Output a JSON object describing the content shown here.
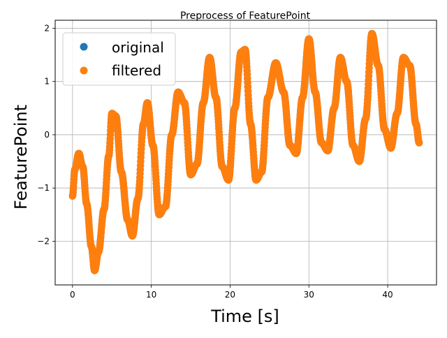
{
  "chart_data": {
    "type": "scatter",
    "title": "Preprocess of FeaturePoint",
    "xlabel": "Time [s]",
    "ylabel": "FeaturePoint",
    "xlim": [
      -2.2,
      46.2
    ],
    "ylim": [
      -2.82,
      2.15
    ],
    "xticks": [
      0,
      10,
      20,
      30,
      40
    ],
    "yticks": [
      -2,
      -1,
      0,
      1,
      2
    ],
    "xtick_labels": [
      "0",
      "10",
      "20",
      "30",
      "40"
    ],
    "ytick_labels": [
      "−2",
      "−1",
      "0",
      "1",
      "2"
    ],
    "grid": true,
    "legend": {
      "position": "top-left",
      "entries": [
        {
          "label": "original",
          "color": "#1f77b4"
        },
        {
          "label": "filtered",
          "color": "#ff7f0e"
        }
      ]
    },
    "series": [
      {
        "name": "original",
        "color": "#1f77b4",
        "x": [
          0.0,
          0.3,
          0.8,
          1.3,
          1.8,
          2.4,
          2.8,
          3.3,
          4.0,
          4.6,
          5.0,
          5.5,
          6.2,
          7.0,
          7.6,
          8.3,
          9.0,
          9.5,
          10.2,
          11.0,
          11.8,
          12.6,
          13.4,
          14.2,
          15.0,
          15.8,
          16.6,
          17.4,
          18.2,
          19.0,
          19.8,
          20.6,
          21.4,
          21.9,
          22.6,
          23.3,
          24.0,
          24.8,
          25.8,
          26.8,
          27.6,
          28.4,
          29.2,
          30.0,
          30.8,
          31.6,
          32.4,
          33.2,
          34.0,
          34.8,
          35.6,
          36.4,
          37.2,
          38.0,
          38.8,
          39.6,
          40.4,
          41.2,
          42.0,
          42.8,
          43.6,
          44.0
        ],
        "y": [
          -1.15,
          -0.65,
          -0.35,
          -0.6,
          -1.3,
          -2.1,
          -2.55,
          -2.2,
          -1.4,
          -0.4,
          0.4,
          0.35,
          -0.7,
          -1.6,
          -1.9,
          -1.2,
          0.2,
          0.6,
          -0.2,
          -1.5,
          -1.35,
          0.0,
          0.8,
          0.6,
          -0.75,
          -0.55,
          0.6,
          1.45,
          0.7,
          -0.6,
          -0.85,
          0.5,
          1.55,
          1.6,
          0.2,
          -0.85,
          -0.7,
          0.7,
          1.35,
          0.8,
          -0.2,
          -0.35,
          0.7,
          1.8,
          0.8,
          -0.15,
          -0.3,
          0.5,
          1.45,
          1.0,
          -0.2,
          -0.5,
          0.3,
          1.9,
          1.3,
          0.1,
          -0.25,
          0.4,
          1.45,
          1.3,
          0.2,
          -0.15
        ]
      },
      {
        "name": "filtered",
        "color": "#ff7f0e",
        "x": [
          0.0,
          0.3,
          0.8,
          1.3,
          1.8,
          2.4,
          2.8,
          3.3,
          4.0,
          4.6,
          5.0,
          5.5,
          6.2,
          7.0,
          7.6,
          8.3,
          9.0,
          9.5,
          10.2,
          11.0,
          11.8,
          12.6,
          13.4,
          14.2,
          15.0,
          15.8,
          16.6,
          17.4,
          18.2,
          19.0,
          19.8,
          20.6,
          21.4,
          21.9,
          22.6,
          23.3,
          24.0,
          24.8,
          25.8,
          26.8,
          27.6,
          28.4,
          29.2,
          30.0,
          30.8,
          31.6,
          32.4,
          33.2,
          34.0,
          34.8,
          35.6,
          36.4,
          37.2,
          38.0,
          38.8,
          39.6,
          40.4,
          41.2,
          42.0,
          42.8,
          43.6,
          44.0
        ],
        "y": [
          -1.15,
          -0.65,
          -0.35,
          -0.6,
          -1.3,
          -2.1,
          -2.55,
          -2.2,
          -1.4,
          -0.4,
          0.4,
          0.35,
          -0.7,
          -1.6,
          -1.9,
          -1.2,
          0.2,
          0.6,
          -0.2,
          -1.5,
          -1.35,
          0.0,
          0.8,
          0.6,
          -0.75,
          -0.55,
          0.6,
          1.45,
          0.7,
          -0.6,
          -0.85,
          0.5,
          1.55,
          1.6,
          0.2,
          -0.85,
          -0.7,
          0.7,
          1.35,
          0.8,
          -0.2,
          -0.35,
          0.7,
          1.8,
          0.8,
          -0.15,
          -0.3,
          0.5,
          1.45,
          1.0,
          -0.2,
          -0.5,
          0.3,
          1.9,
          1.3,
          0.1,
          -0.25,
          0.4,
          1.45,
          1.3,
          0.2,
          -0.15
        ]
      }
    ]
  }
}
